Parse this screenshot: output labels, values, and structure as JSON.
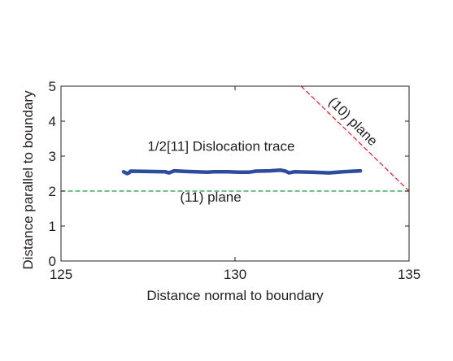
{
  "chart_data": {
    "type": "line",
    "xlabel": "Distance normal to boundary",
    "ylabel": "Distance parallel to boundary",
    "xlim": [
      125,
      135
    ],
    "ylim": [
      0,
      5
    ],
    "xticks": [
      125,
      130,
      135
    ],
    "yticks": [
      0,
      1,
      2,
      3,
      4,
      5
    ],
    "grid": false,
    "series": [
      {
        "name": "1/2[11] Dislocation trace",
        "color": "#2e4c9c",
        "style": "solid",
        "x": [
          126.8,
          126.9,
          126.95,
          127.0,
          127.5,
          128.0,
          128.1,
          128.25,
          128.6,
          129.2,
          129.4,
          129.8,
          130.1,
          130.4,
          130.6,
          131.0,
          131.3,
          131.45,
          131.55,
          131.7,
          132.2,
          132.7,
          133.1,
          133.6
        ],
        "y": [
          2.55,
          2.5,
          2.52,
          2.57,
          2.56,
          2.55,
          2.52,
          2.58,
          2.56,
          2.54,
          2.55,
          2.55,
          2.54,
          2.54,
          2.57,
          2.58,
          2.6,
          2.57,
          2.52,
          2.55,
          2.54,
          2.52,
          2.55,
          2.58
        ]
      },
      {
        "name": "(11) plane",
        "color": "#1f9a4c",
        "style": "dashed",
        "x": [
          125,
          135
        ],
        "y": [
          2,
          2
        ]
      },
      {
        "name": "(10) plane",
        "color": "#e0262f",
        "style": "dashed",
        "x": [
          131.9,
          135
        ],
        "y": [
          5,
          2
        ]
      }
    ],
    "annotations": [
      {
        "text": "1/2[11] Dislocation trace",
        "x": 129.6,
        "y": 3.15,
        "rotate": 0
      },
      {
        "text": "(11) plane",
        "x": 129.3,
        "y": 1.7,
        "rotate": 0
      },
      {
        "text": "(10) plane",
        "x": 133.3,
        "y": 3.9,
        "rotate": 45
      }
    ]
  }
}
